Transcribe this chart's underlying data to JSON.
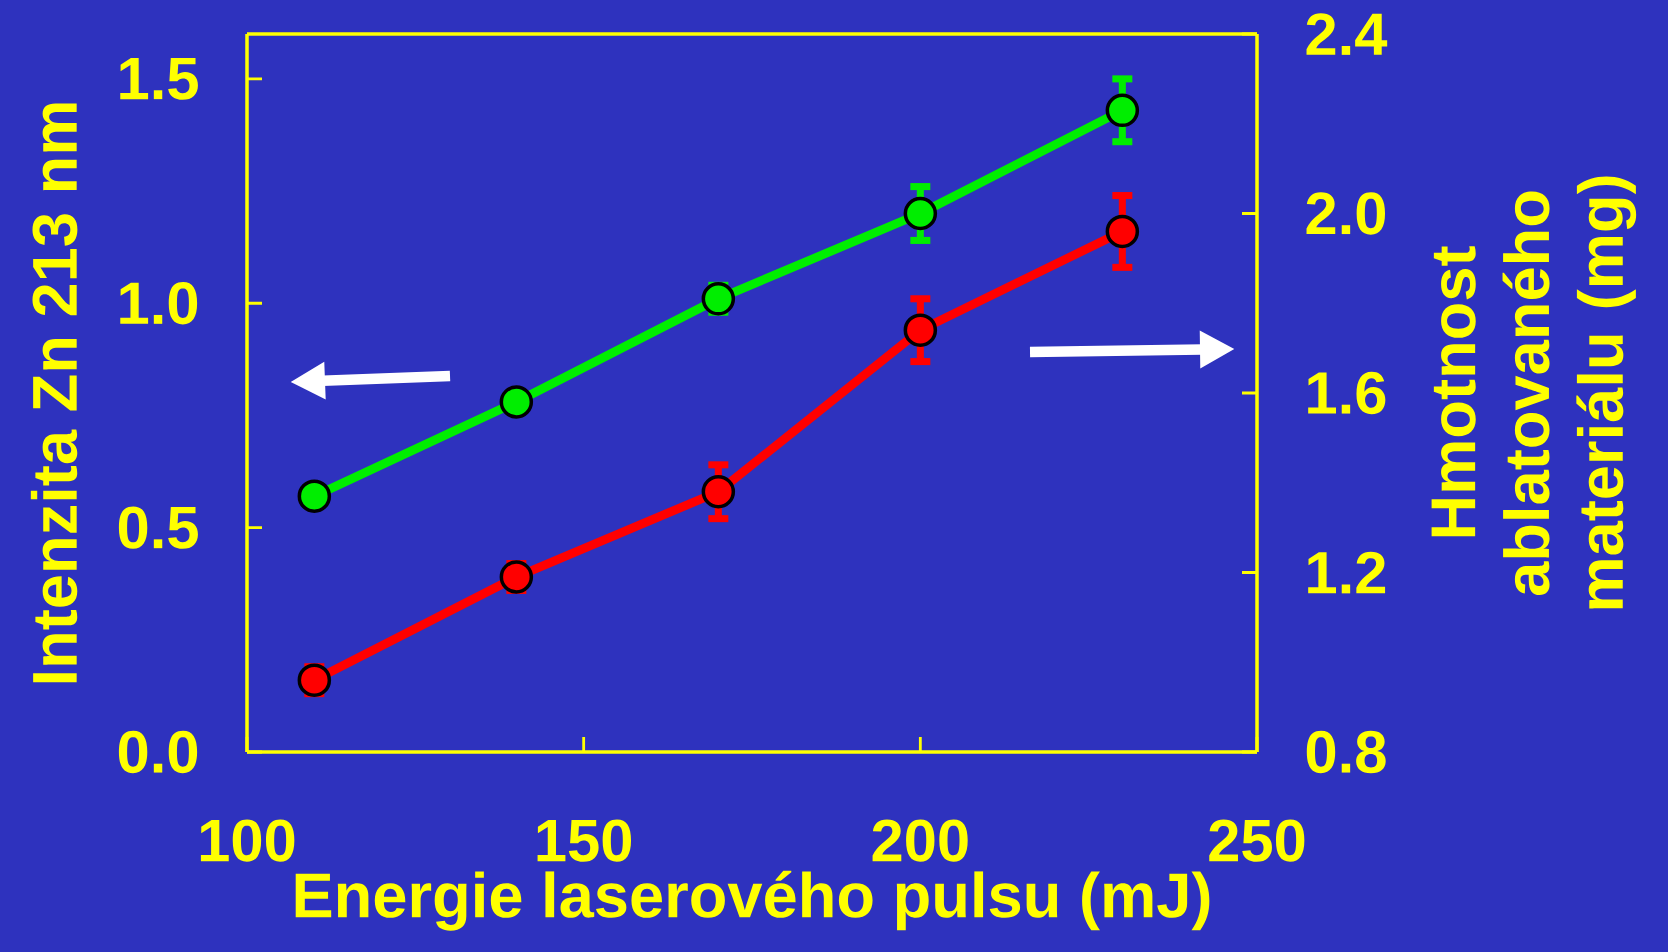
{
  "chart_data": {
    "type": "line",
    "xlabel": "Energie laserového pulsu (mJ)",
    "ylabel": "Intenzita Zn 213 nm",
    "y2label": "Hmotnost ablatovaného materiálu (mg)",
    "x": [
      110,
      140,
      170,
      200,
      230
    ],
    "series": [
      {
        "color": "#00ee00",
        "values": [
          0.57,
          0.78,
          1.01,
          1.2,
          1.43
        ],
        "errors": [
          null,
          null,
          0.03,
          0.06,
          0.07
        ]
      },
      {
        "color": "#ff0000",
        "axis": "y2",
        "values": [
          0.96,
          1.19,
          1.38,
          1.74,
          1.96
        ],
        "errors": [
          0.03,
          0.03,
          0.06,
          0.07,
          0.08
        ]
      }
    ],
    "xlim": [
      100,
      250
    ],
    "xticks": [
      100,
      150,
      200,
      250
    ],
    "ylim": [
      0,
      1.6
    ],
    "yticks": [
      {
        "value": 0,
        "label": "0.0"
      },
      {
        "value": 0.5,
        "label": "0.5"
      },
      {
        "value": 1,
        "label": "1.0"
      },
      {
        "value": 1.5,
        "label": "1.5"
      }
    ],
    "y2lim": [
      0.8,
      2.4
    ],
    "y2ticks": [
      {
        "value": 0.8,
        "label": "0.8"
      },
      {
        "value": 1.2,
        "label": "1.2"
      },
      {
        "value": 1.6,
        "label": "1.6"
      },
      {
        "value": 2.0,
        "label": "2.0"
      },
      {
        "value": 2.4,
        "label": "2.4"
      }
    ],
    "marker": "circle",
    "line_style": "solid"
  }
}
